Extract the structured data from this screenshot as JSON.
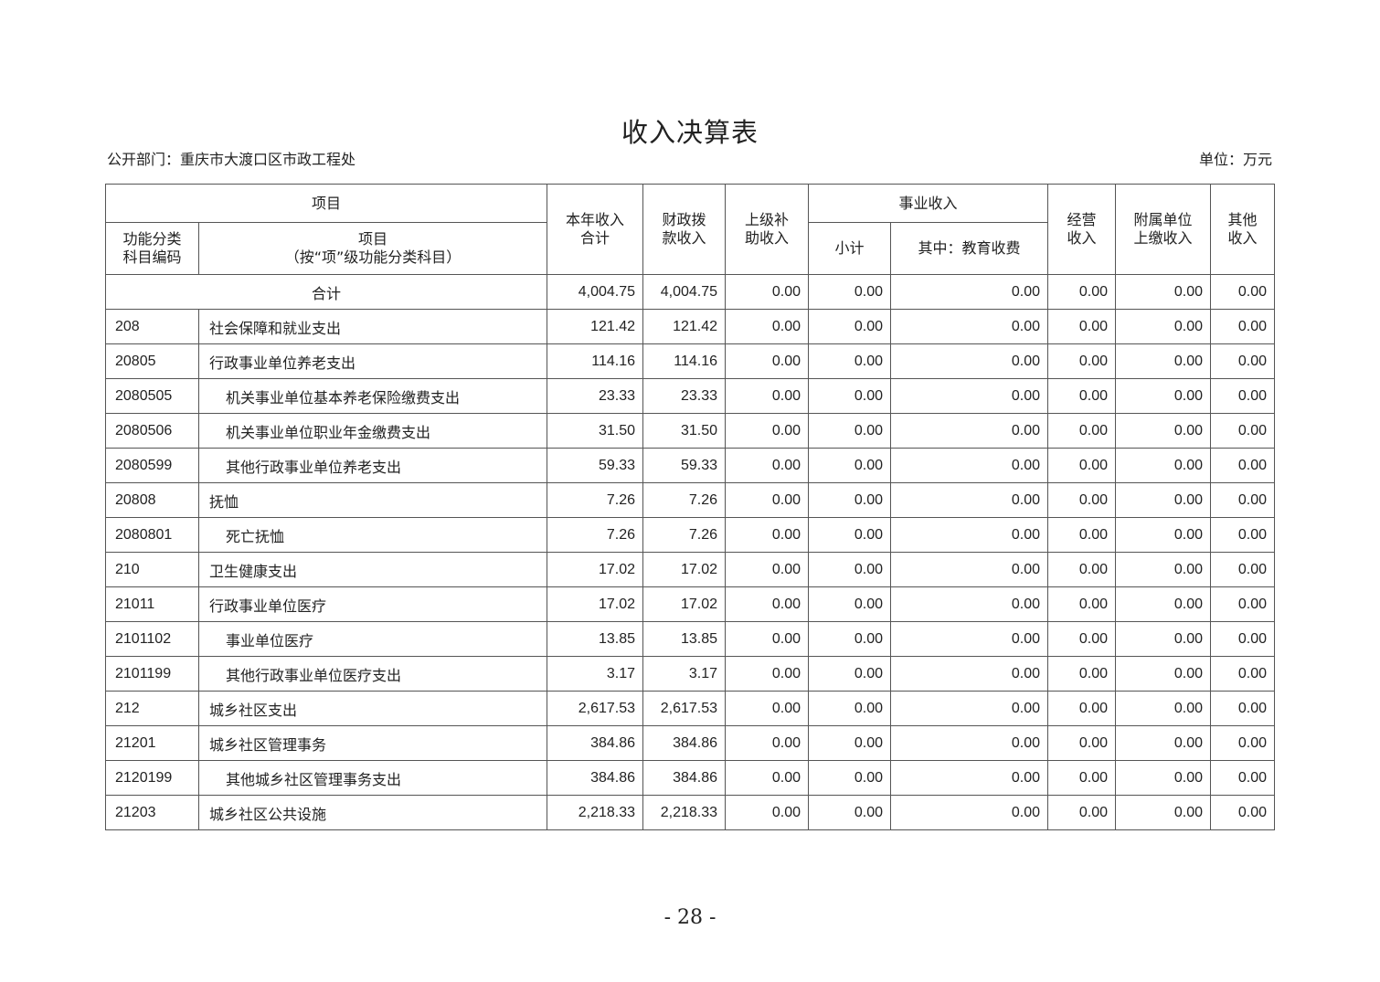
{
  "title": "收入决算表",
  "department": "公开部门：重庆市大渡口区市政工程处",
  "unit": "单位：万元",
  "headers": {
    "item_group": "项目",
    "code": "功能分类\n科目编码",
    "item_line1": "项目",
    "item_line2": "（按“项”级功能分类科目）",
    "total_income": "本年收入\n合计",
    "fiscal": "财政拨\n款收入",
    "superior": "上级补\n助收入",
    "business_group": "事业收入",
    "subtotal": "小计",
    "education": "其中：教育收费",
    "operating": "经营\n收入",
    "affiliated": "附属单位\n上缴收入",
    "other": "其他\n收入"
  },
  "total_row": {
    "label": "合计",
    "values": [
      "4,004.75",
      "4,004.75",
      "0.00",
      "0.00",
      "0.00",
      "0.00",
      "0.00",
      "0.00"
    ]
  },
  "rows": [
    {
      "code": "208",
      "name": "社会保障和就业支出",
      "indent": false,
      "values": [
        "121.42",
        "121.42",
        "0.00",
        "0.00",
        "0.00",
        "0.00",
        "0.00",
        "0.00"
      ]
    },
    {
      "code": "20805",
      "name": "行政事业单位养老支出",
      "indent": false,
      "values": [
        "114.16",
        "114.16",
        "0.00",
        "0.00",
        "0.00",
        "0.00",
        "0.00",
        "0.00"
      ]
    },
    {
      "code": "2080505",
      "name": "机关事业单位基本养老保险缴费支出",
      "indent": true,
      "values": [
        "23.33",
        "23.33",
        "0.00",
        "0.00",
        "0.00",
        "0.00",
        "0.00",
        "0.00"
      ]
    },
    {
      "code": "2080506",
      "name": "机关事业单位职业年金缴费支出",
      "indent": true,
      "values": [
        "31.50",
        "31.50",
        "0.00",
        "0.00",
        "0.00",
        "0.00",
        "0.00",
        "0.00"
      ]
    },
    {
      "code": "2080599",
      "name": "其他行政事业单位养老支出",
      "indent": true,
      "values": [
        "59.33",
        "59.33",
        "0.00",
        "0.00",
        "0.00",
        "0.00",
        "0.00",
        "0.00"
      ]
    },
    {
      "code": "20808",
      "name": "抚恤",
      "indent": false,
      "values": [
        "7.26",
        "7.26",
        "0.00",
        "0.00",
        "0.00",
        "0.00",
        "0.00",
        "0.00"
      ]
    },
    {
      "code": "2080801",
      "name": "死亡抚恤",
      "indent": true,
      "values": [
        "7.26",
        "7.26",
        "0.00",
        "0.00",
        "0.00",
        "0.00",
        "0.00",
        "0.00"
      ]
    },
    {
      "code": "210",
      "name": "卫生健康支出",
      "indent": false,
      "values": [
        "17.02",
        "17.02",
        "0.00",
        "0.00",
        "0.00",
        "0.00",
        "0.00",
        "0.00"
      ]
    },
    {
      "code": "21011",
      "name": "行政事业单位医疗",
      "indent": false,
      "values": [
        "17.02",
        "17.02",
        "0.00",
        "0.00",
        "0.00",
        "0.00",
        "0.00",
        "0.00"
      ]
    },
    {
      "code": "2101102",
      "name": "事业单位医疗",
      "indent": true,
      "values": [
        "13.85",
        "13.85",
        "0.00",
        "0.00",
        "0.00",
        "0.00",
        "0.00",
        "0.00"
      ]
    },
    {
      "code": "2101199",
      "name": "其他行政事业单位医疗支出",
      "indent": true,
      "values": [
        "3.17",
        "3.17",
        "0.00",
        "0.00",
        "0.00",
        "0.00",
        "0.00",
        "0.00"
      ]
    },
    {
      "code": "212",
      "name": "城乡社区支出",
      "indent": false,
      "values": [
        "2,617.53",
        "2,617.53",
        "0.00",
        "0.00",
        "0.00",
        "0.00",
        "0.00",
        "0.00"
      ]
    },
    {
      "code": "21201",
      "name": "城乡社区管理事务",
      "indent": false,
      "values": [
        "384.86",
        "384.86",
        "0.00",
        "0.00",
        "0.00",
        "0.00",
        "0.00",
        "0.00"
      ]
    },
    {
      "code": "2120199",
      "name": "其他城乡社区管理事务支出",
      "indent": true,
      "values": [
        "384.86",
        "384.86",
        "0.00",
        "0.00",
        "0.00",
        "0.00",
        "0.00",
        "0.00"
      ]
    },
    {
      "code": "21203",
      "name": "城乡社区公共设施",
      "indent": false,
      "values": [
        "2,218.33",
        "2,218.33",
        "0.00",
        "0.00",
        "0.00",
        "0.00",
        "0.00",
        "0.00"
      ]
    }
  ],
  "page_number": "- 28 -"
}
